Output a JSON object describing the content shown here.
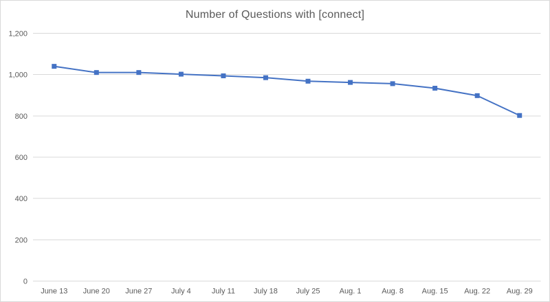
{
  "chart_data": {
    "type": "line",
    "title": "Number of Questions with [connect]",
    "categories": [
      "June 13",
      "June 20",
      "June 27",
      "July 4",
      "July 11",
      "July 18",
      "July 25",
      "Aug. 1",
      "Aug. 8",
      "Aug. 15",
      "Aug. 22",
      "Aug. 29"
    ],
    "values": [
      1040,
      1010,
      1010,
      1002,
      994,
      985,
      968,
      962,
      956,
      934,
      898,
      802
    ],
    "xlabel": "",
    "ylabel": "",
    "ylim": [
      0,
      1200
    ],
    "y_ticks": [
      "0",
      "200",
      "400",
      "600",
      "800",
      "1,000",
      "1,200"
    ],
    "grid": true,
    "legend_position": "none",
    "marker_shape": "square",
    "colors": {
      "line": "#4472C4",
      "marker": "#4472C4",
      "gridline": "#D9D9D9",
      "axis_label": "#595959",
      "title": "#595959",
      "border": "#D9D9D9",
      "background": "#FFFFFF"
    }
  }
}
